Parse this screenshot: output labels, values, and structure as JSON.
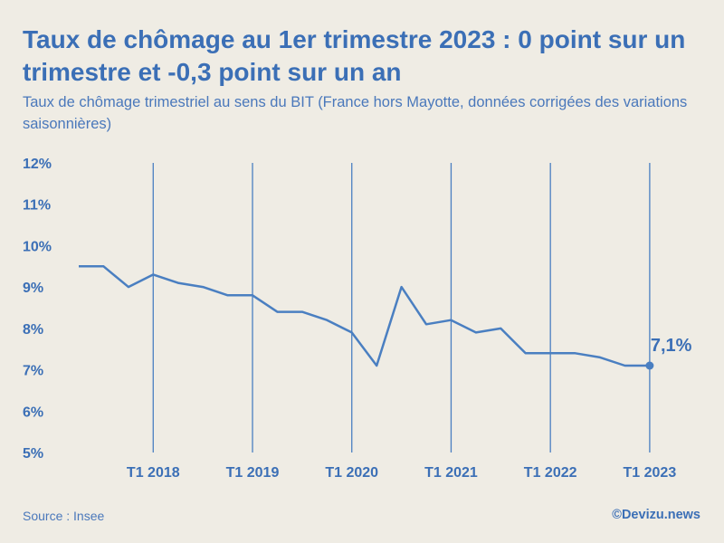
{
  "title": "Taux de chômage au 1er trimestre 2023 : 0 point sur un trimestre et -0,3 point sur un an",
  "subtitle": "Taux de chômage trimestriel au sens du BIT (France hors Mayotte, données corrigées des variations saisonnières)",
  "source": "Source : Insee",
  "brand": "©Devizu.news",
  "colors": {
    "accent": "#3b6fb6",
    "background": "#efece4",
    "line": "#4a7fc1"
  },
  "chart_data": {
    "type": "line",
    "title": "Taux de chômage au 1er trimestre 2023 : 0 point sur un trimestre et -0,3 point sur un an",
    "subtitle": "Taux de chômage trimestriel au sens du BIT (France hors Mayotte, données corrigées des variations saisonnières)",
    "xlabel": "",
    "ylabel": "",
    "ylim": [
      5,
      12
    ],
    "y_ticks": [
      5,
      6,
      7,
      8,
      9,
      10,
      11,
      12
    ],
    "y_tick_labels": [
      "5%",
      "6%",
      "7%",
      "8%",
      "9%",
      "10%",
      "11%",
      "12%"
    ],
    "x_tick_labels": [
      "T1 2018",
      "T1 2019",
      "T1 2020",
      "T1 2021",
      "T1 2022",
      "T1 2023"
    ],
    "x": [
      "T2 2017",
      "T3 2017",
      "T4 2017",
      "T1 2018",
      "T2 2018",
      "T3 2018",
      "T4 2018",
      "T1 2019",
      "T2 2019",
      "T3 2019",
      "T4 2019",
      "T1 2020",
      "T2 2020",
      "T3 2020",
      "T4 2020",
      "T1 2021",
      "T2 2021",
      "T3 2021",
      "T4 2021",
      "T1 2022",
      "T2 2022",
      "T3 2022",
      "T4 2022",
      "T1 2023"
    ],
    "values": [
      9.5,
      9.5,
      9.0,
      9.3,
      9.1,
      9.0,
      8.8,
      8.8,
      8.4,
      8.4,
      8.2,
      7.9,
      7.1,
      9.0,
      8.1,
      8.2,
      7.9,
      8.0,
      7.4,
      7.4,
      7.4,
      7.3,
      7.1,
      7.1
    ],
    "annotation": {
      "label": "7,1%",
      "x": "T1 2023",
      "value": 7.1
    },
    "grid": "vertical lines at T1 of each year",
    "legend": "none"
  }
}
